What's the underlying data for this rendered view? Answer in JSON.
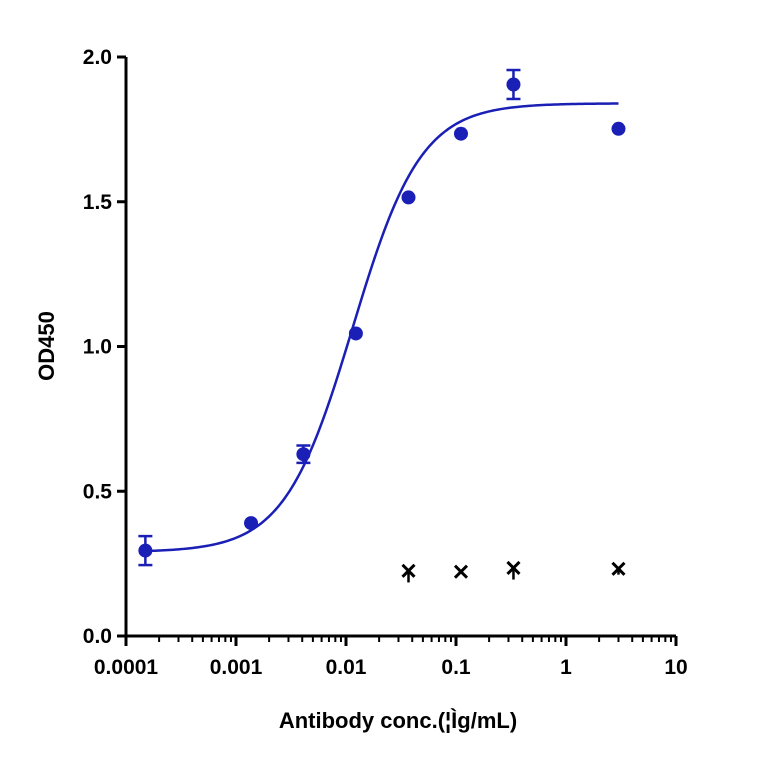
{
  "chart_data": {
    "type": "scatter",
    "xlabel": "Antibody conc.(¦Ìg/mL)",
    "ylabel": "OD450",
    "x_scale": "log",
    "xlim": [
      0.0001,
      10
    ],
    "ylim": [
      0,
      2.0
    ],
    "x_ticks": [
      "0.0001",
      "0.001",
      "0.01",
      "0.1",
      "1",
      "10"
    ],
    "y_ticks": [
      "0.0",
      "0.5",
      "1.0",
      "1.5",
      "2.0"
    ],
    "grid": false,
    "series": [
      {
        "marker": "circle",
        "color": "#1a1fb5",
        "points": [
          {
            "x": 0.00015,
            "y": 0.295,
            "err": 0.05
          },
          {
            "x": 0.00137,
            "y": 0.39,
            "err": 0.01
          },
          {
            "x": 0.0041,
            "y": 0.628,
            "err": 0.03
          },
          {
            "x": 0.0123,
            "y": 1.045,
            "err": 0.01
          },
          {
            "x": 0.037,
            "y": 1.515,
            "err": 0.01
          },
          {
            "x": 0.111,
            "y": 1.735,
            "err": 0.01
          },
          {
            "x": 0.333,
            "y": 1.905,
            "err": 0.05
          },
          {
            "x": 3.0,
            "y": 1.752,
            "err": 0.01
          }
        ],
        "fit": {
          "model": "4PL",
          "bottom": 0.29,
          "top": 1.84,
          "ec50": 0.0115,
          "hill": 1.4,
          "x_range": [
            0.00015,
            3.0
          ]
        }
      },
      {
        "marker": "x",
        "color": "#000000",
        "points": [
          {
            "x": 0.037,
            "y": 0.225,
            "err": 0.04
          },
          {
            "x": 0.111,
            "y": 0.222,
            "err": 0.005
          },
          {
            "x": 0.333,
            "y": 0.235,
            "err": 0.04
          },
          {
            "x": 3.0,
            "y": 0.232,
            "err": 0.02
          }
        ]
      }
    ]
  }
}
